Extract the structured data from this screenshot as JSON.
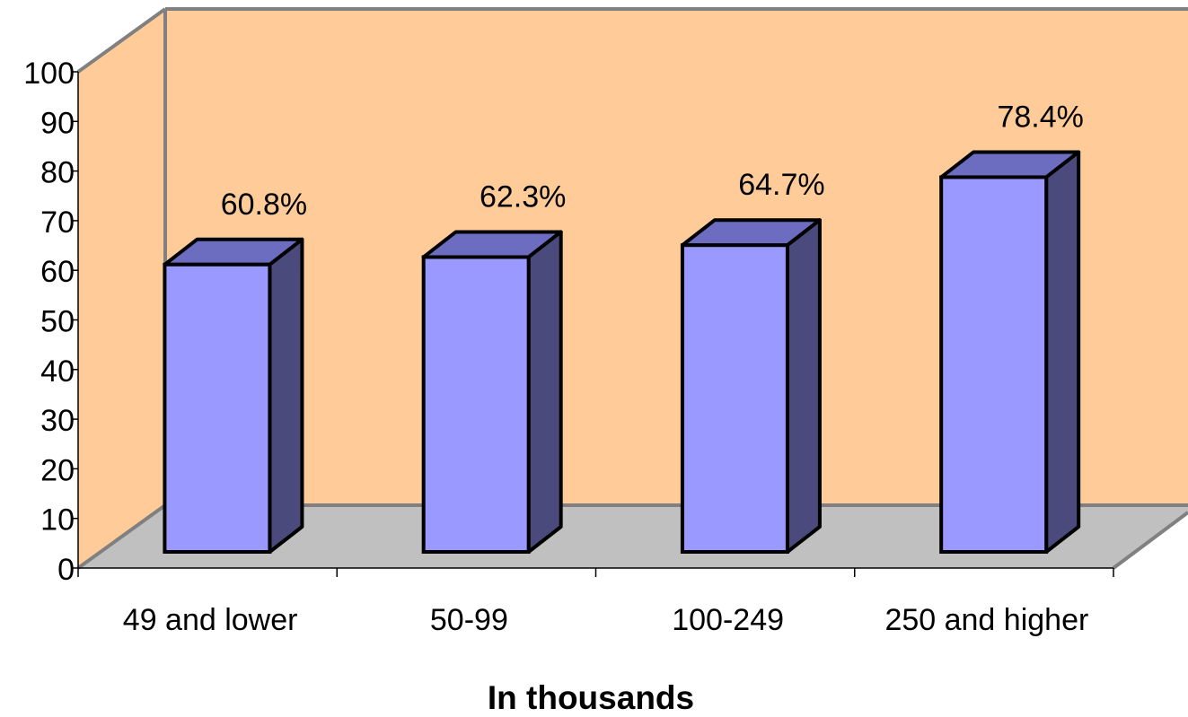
{
  "chart_data": {
    "type": "bar",
    "style": "3d",
    "categories": [
      "49 and lower",
      "50-99",
      "100-249",
      "250 and higher"
    ],
    "values": [
      60.8,
      62.3,
      64.7,
      78.4
    ],
    "value_labels": [
      "60.8%",
      "62.3%",
      "64.7%",
      "78.4%"
    ],
    "y_ticks": [
      "0",
      "10",
      "20",
      "30",
      "40",
      "50",
      "60",
      "70",
      "80",
      "90",
      "100"
    ],
    "ylim": [
      0,
      100
    ],
    "xlabel": "In thousands",
    "ylabel": "",
    "title": "",
    "grid": false,
    "legend": "none",
    "colors": {
      "back_wall": "#FFCC99",
      "side_wall": "#FFCC99",
      "floor": "#C0C0C0",
      "frame": "#808080",
      "bar_front": "#9999FF",
      "bar_top": "#6C6CC0",
      "bar_side": "#4A4A7D",
      "outline": "#000000"
    }
  }
}
